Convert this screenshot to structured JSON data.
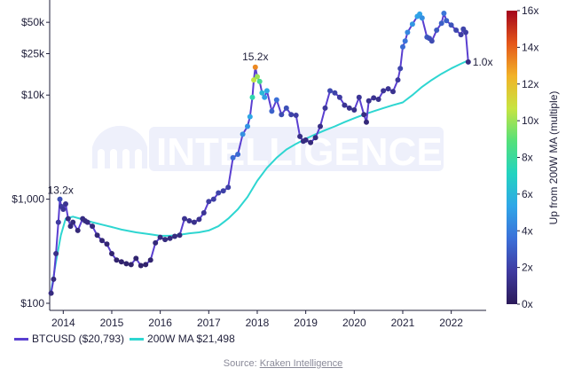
{
  "watermark": "INTELLIGENCE",
  "legend": {
    "price_label": "BTCUSD ($20,793)",
    "ma_label": "200W MA $21,498",
    "price_color": "#5a3fd0",
    "ma_color": "#2ed6d1"
  },
  "source": {
    "prefix": "Source: ",
    "link": "Kraken Intelligence"
  },
  "colorbar": {
    "label": "Up from 200W MA (multiple)",
    "ticks": [
      "0x",
      "2x",
      "4x",
      "6x",
      "8x",
      "10x",
      "12x",
      "14x",
      "16x"
    ],
    "stops": [
      "#2b1a59",
      "#3f3aa0",
      "#3b6fd8",
      "#2fa6e8",
      "#22d3c0",
      "#54e07a",
      "#c7e441",
      "#f2b227",
      "#e4561a",
      "#a3051c"
    ],
    "range": [
      0,
      16
    ]
  },
  "chart_data": {
    "type": "line",
    "y_scale": "log",
    "y_ticks": [
      "$100",
      "$1,000",
      "$10k",
      "$25k",
      "$50k"
    ],
    "x_ticks": [
      "2014",
      "2015",
      "2016",
      "2017",
      "2018",
      "2019",
      "2020",
      "2021",
      "2022"
    ],
    "xlim": [
      2013.72,
      2022.72
    ],
    "ylim": [
      100,
      70000
    ],
    "annotations": [
      "13.2x",
      "15.2x",
      "1.0x"
    ],
    "series": [
      {
        "name": "BTCUSD ($20,793)",
        "color_by": "multiple of 200W MA",
        "x": [
          2013.75,
          2013.8,
          2013.85,
          2013.9,
          2013.93,
          2013.96,
          2014.0,
          2014.05,
          2014.1,
          2014.15,
          2014.2,
          2014.3,
          2014.4,
          2014.45,
          2014.5,
          2014.6,
          2014.7,
          2014.8,
          2014.9,
          2015.0,
          2015.1,
          2015.2,
          2015.3,
          2015.4,
          2015.5,
          2015.6,
          2015.7,
          2015.8,
          2015.9,
          2016.0,
          2016.1,
          2016.2,
          2016.3,
          2016.4,
          2016.5,
          2016.6,
          2016.7,
          2016.8,
          2016.9,
          2017.0,
          2017.1,
          2017.2,
          2017.3,
          2017.4,
          2017.5,
          2017.6,
          2017.7,
          2017.8,
          2017.85,
          2017.9,
          2017.93,
          2017.96,
          2018.0,
          2018.05,
          2018.1,
          2018.15,
          2018.2,
          2018.3,
          2018.4,
          2018.5,
          2018.6,
          2018.7,
          2018.8,
          2018.88,
          2018.95,
          2019.0,
          2019.1,
          2019.2,
          2019.3,
          2019.4,
          2019.5,
          2019.6,
          2019.7,
          2019.8,
          2019.9,
          2020.0,
          2020.1,
          2020.2,
          2020.25,
          2020.3,
          2020.4,
          2020.5,
          2020.6,
          2020.7,
          2020.8,
          2020.9,
          2020.95,
          2021.0,
          2021.05,
          2021.1,
          2021.2,
          2021.3,
          2021.35,
          2021.4,
          2021.5,
          2021.55,
          2021.6,
          2021.7,
          2021.8,
          2021.85,
          2021.9,
          2022.0,
          2022.1,
          2022.2,
          2022.25,
          2022.3,
          2022.35
        ],
        "y": [
          125,
          170,
          300,
          600,
          1000,
          850,
          800,
          900,
          650,
          550,
          600,
          500,
          650,
          620,
          600,
          550,
          450,
          400,
          370,
          300,
          260,
          250,
          240,
          235,
          270,
          230,
          235,
          260,
          380,
          430,
          410,
          420,
          440,
          450,
          650,
          620,
          600,
          640,
          740,
          950,
          1000,
          1150,
          1200,
          1300,
          2500,
          2700,
          4200,
          5000,
          6200,
          9500,
          14000,
          18500,
          15000,
          13500,
          10500,
          9500,
          11000,
          7000,
          9000,
          6500,
          7500,
          6500,
          6400,
          4000,
          3600,
          3700,
          3500,
          3900,
          5000,
          7500,
          11000,
          10500,
          9500,
          8000,
          7500,
          7200,
          9500,
          6500,
          5500,
          8800,
          9400,
          9100,
          11000,
          11500,
          10800,
          14000,
          18000,
          29000,
          33000,
          40000,
          48000,
          57000,
          60000,
          55000,
          36000,
          35000,
          33000,
          42000,
          49000,
          61000,
          52000,
          47000,
          42000,
          38000,
          43000,
          40000,
          20793
        ]
      },
      {
        "name": "200W MA $21,498",
        "x": [
          2013.75,
          2013.85,
          2013.95,
          2014.05,
          2014.2,
          2014.4,
          2014.6,
          2014.8,
          2015.0,
          2015.2,
          2015.5,
          2015.8,
          2016.0,
          2016.2,
          2016.4,
          2016.6,
          2016.8,
          2017.0,
          2017.2,
          2017.4,
          2017.6,
          2017.8,
          2018.0,
          2018.2,
          2018.4,
          2018.6,
          2018.8,
          2019.0,
          2019.2,
          2019.4,
          2019.6,
          2019.8,
          2020.0,
          2020.2,
          2020.4,
          2020.6,
          2020.8,
          2021.0,
          2021.2,
          2021.4,
          2021.6,
          2021.8,
          2022.0,
          2022.2,
          2022.35
        ],
        "y": [
          130,
          250,
          450,
          650,
          680,
          640,
          600,
          570,
          540,
          510,
          480,
          460,
          445,
          445,
          455,
          470,
          480,
          500,
          550,
          650,
          800,
          1050,
          1500,
          2000,
          2500,
          3000,
          3400,
          3800,
          4200,
          4600,
          5000,
          5500,
          6000,
          6500,
          7000,
          7500,
          8000,
          8500,
          10000,
          12000,
          14000,
          16000,
          18000,
          20000,
          21498
        ]
      }
    ]
  }
}
